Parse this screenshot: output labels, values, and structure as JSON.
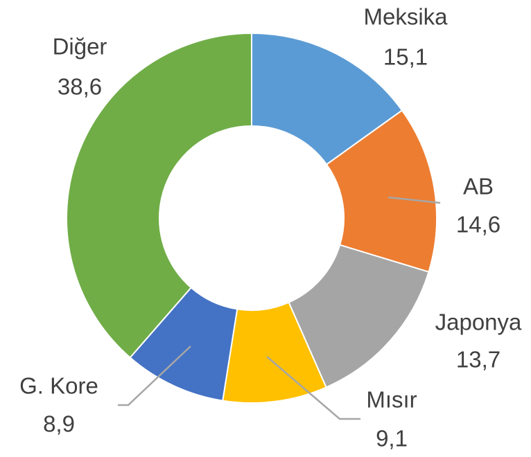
{
  "chart_data": {
    "type": "donut",
    "categories": [
      "Meksika",
      "AB",
      "Japonya",
      "Mısır",
      "G. Kore",
      "Diğer"
    ],
    "values": [
      15.1,
      14.6,
      13.7,
      9.1,
      8.9,
      38.6
    ],
    "value_labels": [
      "15,1",
      "14,6",
      "13,7",
      "9,1",
      "8,9",
      "38,6"
    ],
    "colors": [
      "#5b9bd5",
      "#ed7d31",
      "#a5a5a5",
      "#ffc000",
      "#4472c4",
      "#70ad47"
    ]
  }
}
